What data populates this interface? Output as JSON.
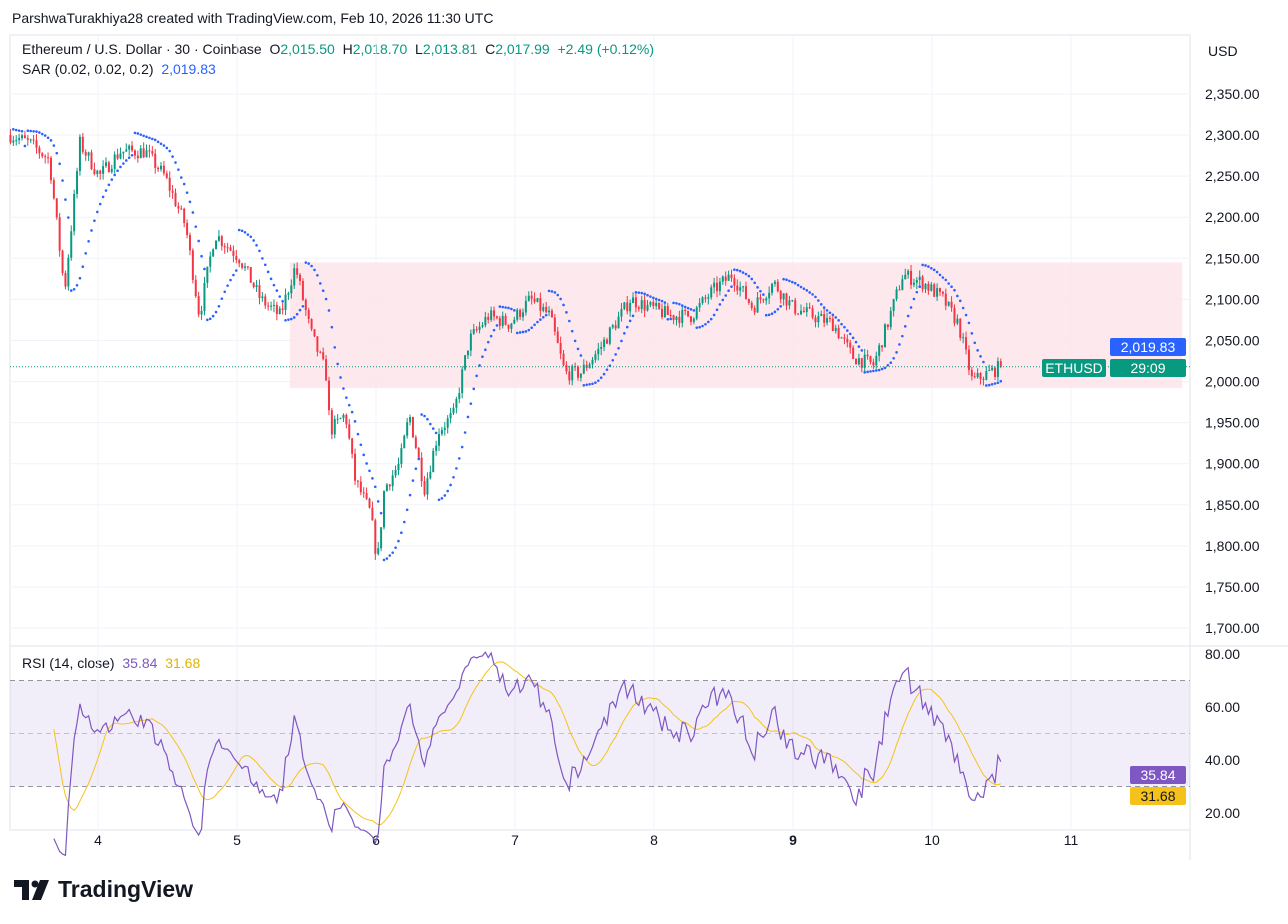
{
  "credit": "ParshwaTurakhiya28 created with TradingView.com, Feb 10, 2026 11:30 UTC",
  "legend": {
    "symbol": "Ethereum / U.S. Dollar · 30 · Coinbase",
    "o_label": "O",
    "o": "2,015.50",
    "h_label": "H",
    "h": "2,018.70",
    "l_label": "L",
    "l": "2,013.81",
    "c_label": "C",
    "c": "2,017.99",
    "change": "+2.49 (+0.12%)",
    "sar_label": "SAR (0.02, 0.02, 0.2)",
    "sar_value": "2,019.83",
    "rsi_label": "RSI (14, close)",
    "rsi_value": "35.84",
    "rsi_ma_value": "31.68"
  },
  "currency": "USD",
  "badges": {
    "sar": "2,019.83",
    "symbol": "ETHUSD",
    "countdown": "29:09",
    "rsi": "35.84",
    "rsi_ma": "31.68"
  },
  "logo": "TradingView",
  "colors": {
    "up": "#089981",
    "down": "#f23645",
    "sar": "#2962ff",
    "rsi": "#7e57c2",
    "rsi_ma": "#f5c21b",
    "zone": "#fde4e8"
  },
  "chart_data": {
    "type": "candlestick",
    "interval_minutes": 30,
    "price_ticks": [
      "2,350.00",
      "2,300.00",
      "2,250.00",
      "2,200.00",
      "2,150.00",
      "2,100.00",
      "2,050.00",
      "2,000.00",
      "1,950.00",
      "1,900.00",
      "1,850.00",
      "1,800.00",
      "1,750.00",
      "1,700.00"
    ],
    "price_tick_values": [
      2350,
      2300,
      2250,
      2200,
      2150,
      2100,
      2050,
      2000,
      1950,
      1900,
      1850,
      1800,
      1750,
      1700
    ],
    "ylim": [
      1700,
      2350
    ],
    "x_ticks": [
      "4",
      "5",
      "6",
      "7",
      "8",
      "9",
      "10",
      "11"
    ],
    "x_tick_days": [
      4,
      5,
      6,
      7,
      8,
      9,
      10,
      11
    ],
    "xlim_days": [
      3.3,
      11.8
    ],
    "close_path": [
      [
        3.37,
        2300
      ],
      [
        3.51,
        2290
      ],
      [
        3.65,
        2270
      ],
      [
        3.76,
        2110
      ],
      [
        3.87,
        2290
      ],
      [
        4.01,
        2250
      ],
      [
        4.16,
        2280
      ],
      [
        4.34,
        2280
      ],
      [
        4.48,
        2250
      ],
      [
        4.63,
        2190
      ],
      [
        4.73,
        2080
      ],
      [
        4.84,
        2180
      ],
      [
        5.02,
        2150
      ],
      [
        5.17,
        2100
      ],
      [
        5.31,
        2080
      ],
      [
        5.42,
        2140
      ],
      [
        5.53,
        2060
      ],
      [
        5.64,
        2010
      ],
      [
        5.67,
        1940
      ],
      [
        5.78,
        1960
      ],
      [
        5.85,
        1880
      ],
      [
        5.96,
        1840
      ],
      [
        6.01,
        1780
      ],
      [
        6.06,
        1870
      ],
      [
        6.17,
        1900
      ],
      [
        6.24,
        1960
      ],
      [
        6.35,
        1870
      ],
      [
        6.45,
        1940
      ],
      [
        6.56,
        1960
      ],
      [
        6.67,
        2050
      ],
      [
        6.81,
        2080
      ],
      [
        6.96,
        2070
      ],
      [
        7.11,
        2100
      ],
      [
        7.25,
        2080
      ],
      [
        7.36,
        2010
      ],
      [
        7.47,
        2010
      ],
      [
        7.61,
        2040
      ],
      [
        7.72,
        2070
      ],
      [
        7.83,
        2100
      ],
      [
        7.97,
        2090
      ],
      [
        8.12,
        2080
      ],
      [
        8.27,
        2080
      ],
      [
        8.42,
        2110
      ],
      [
        8.56,
        2130
      ],
      [
        8.71,
        2090
      ],
      [
        8.86,
        2120
      ],
      [
        9.0,
        2090
      ],
      [
        9.14,
        2080
      ],
      [
        9.29,
        2070
      ],
      [
        9.43,
        2030
      ],
      [
        9.58,
        2020
      ],
      [
        9.68,
        2070
      ],
      [
        9.79,
        2130
      ],
      [
        9.94,
        2120
      ],
      [
        10.08,
        2100
      ],
      [
        10.19,
        2070
      ],
      [
        10.29,
        2000
      ],
      [
        10.4,
        2010
      ],
      [
        10.5,
        2018
      ]
    ],
    "last_close": 2017.99,
    "range_zone": {
      "top": 2145,
      "bottom": 1992,
      "from_day": 5.38,
      "to_day": 11.8
    },
    "sar": {
      "start": 0.02,
      "step": 0.02,
      "max": 0.2,
      "last": 2019.83
    },
    "rsi": {
      "length": 14,
      "ma_length": 14,
      "ticks": [
        "80.00",
        "60.00",
        "40.00",
        "20.00"
      ],
      "tick_values": [
        80,
        60,
        40,
        20
      ],
      "upper": 70,
      "middle": 50,
      "lower": 30,
      "ylim": [
        15,
        82
      ],
      "last": 35.84,
      "ma_last": 31.68
    }
  }
}
